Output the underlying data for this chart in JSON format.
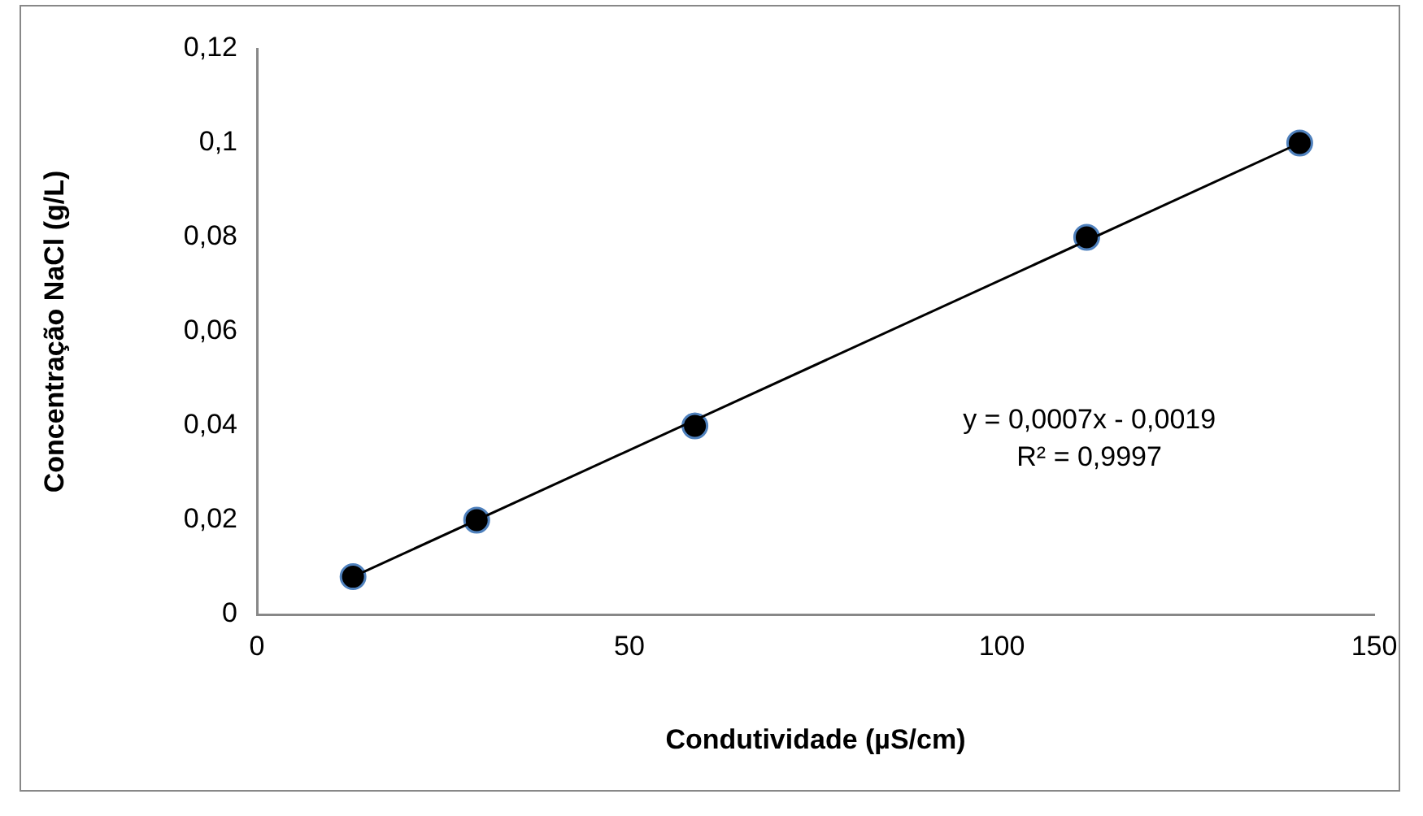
{
  "chart_data": {
    "type": "scatter",
    "xlabel": "Condutividade (µS/cm)",
    "ylabel": "Concentração NaCl (g/L)",
    "xlim": [
      0,
      150
    ],
    "xticks": [
      0,
      50,
      100,
      150
    ],
    "ylim": [
      0,
      0.12
    ],
    "yticks": [
      0,
      {
        "value": 0.02,
        "label": "0,02"
      },
      {
        "value": 0.04,
        "label": "0,04"
      },
      {
        "value": 0.06,
        "label": "0,06"
      },
      {
        "value": 0.08,
        "label": "0,08"
      },
      {
        "value": 0.1,
        "label": "0,1"
      },
      {
        "value": 0.12,
        "label": "0,12"
      }
    ],
    "grid": false,
    "legend": false,
    "series": [
      {
        "type": "line",
        "color": "#000000",
        "marker": "none",
        "line_style": "solid",
        "x": [
          12.9,
          140
        ],
        "values": [
          0.008,
          0.1
        ]
      },
      {
        "type": "scatter",
        "color": "#000000",
        "marker": "circle",
        "x": [
          12.9,
          29.5,
          58.8,
          111.4,
          140
        ],
        "values": [
          0.008,
          0.02,
          0.04,
          0.08,
          0.1
        ]
      }
    ],
    "annotations": [
      "y = 0,0007x - 0,0019",
      "R² = 0,9997"
    ]
  }
}
